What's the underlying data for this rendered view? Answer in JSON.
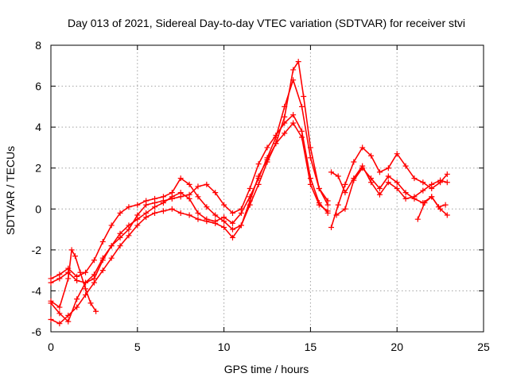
{
  "chart_data": {
    "type": "scatter",
    "title": "Day 013 of 2021, Sidereal Day-to-day VTEC variation (SDTVAR) for receiver stvi",
    "xlabel": "GPS time / hours",
    "ylabel": "SDTVAR / TECUs",
    "xlim": [
      0,
      25
    ],
    "ylim": [
      -6,
      8
    ],
    "xticks": [
      0,
      5,
      10,
      15,
      20,
      25
    ],
    "yticks": [
      -6,
      -4,
      -2,
      0,
      2,
      4,
      6,
      8
    ],
    "grid": true,
    "marker": "+",
    "color": "#ff0000",
    "series": [
      {
        "name": "track-1",
        "x": [
          0.0,
          0.5,
          1.0,
          1.5,
          2.0,
          2.5,
          3.0,
          3.5,
          4.0,
          4.5,
          5.0,
          5.5,
          6.0,
          6.5,
          7.0,
          7.5,
          8.0,
          8.5,
          9.0,
          9.5,
          10.0,
          10.5,
          11.0,
          11.5,
          12.0,
          12.5,
          13.0,
          13.5,
          14.0,
          14.3,
          14.6,
          15.0,
          15.5,
          16.0
        ],
        "y": [
          -3.4,
          -3.2,
          -2.9,
          -3.3,
          -3.1,
          -2.5,
          -1.6,
          -0.8,
          -0.2,
          0.1,
          0.2,
          0.4,
          0.5,
          0.6,
          0.8,
          1.5,
          1.2,
          0.6,
          0.1,
          -0.3,
          -0.6,
          -1.0,
          -0.8,
          0.4,
          1.6,
          2.4,
          3.2,
          4.5,
          6.8,
          7.2,
          5.5,
          3.0,
          1.0,
          0.2
        ]
      },
      {
        "name": "track-2",
        "x": [
          0.0,
          0.5,
          1.0,
          1.5,
          2.0,
          2.5,
          3.0,
          3.5,
          4.0,
          4.5,
          5.0,
          5.5,
          6.0,
          6.5,
          7.0,
          7.5,
          8.0,
          8.5,
          9.0,
          9.5,
          10.0,
          10.5,
          11.0,
          11.5,
          12.0,
          12.5,
          13.0,
          13.5,
          14.0,
          14.5,
          15.0,
          15.5,
          16.0
        ],
        "y": [
          -3.6,
          -3.4,
          -3.1,
          -3.5,
          -3.6,
          -3.4,
          -2.5,
          -1.8,
          -1.2,
          -0.8,
          -0.5,
          -0.2,
          0.1,
          0.3,
          0.6,
          0.8,
          0.5,
          -0.2,
          -0.5,
          -0.6,
          -0.4,
          -0.7,
          -0.2,
          0.6,
          1.5,
          2.5,
          3.5,
          5.0,
          6.3,
          5.0,
          2.5,
          1.0,
          0.4
        ]
      },
      {
        "name": "track-3",
        "x": [
          0.0,
          0.5,
          1.0,
          1.5,
          2.0,
          2.5,
          3.0,
          3.5,
          4.0,
          4.5,
          5.0,
          5.5,
          6.0,
          6.5,
          7.0,
          7.5,
          8.0,
          8.5,
          9.0,
          9.5,
          10.0,
          10.5,
          11.0,
          11.5,
          12.0,
          12.5,
          13.0,
          13.5,
          14.0,
          14.5,
          15.0,
          15.5,
          16.0
        ],
        "y": [
          -4.6,
          -5.1,
          -5.5,
          -4.4,
          -3.6,
          -3.2,
          -2.4,
          -1.8,
          -1.4,
          -1.0,
          -0.3,
          0.2,
          0.3,
          0.4,
          0.5,
          0.6,
          0.7,
          1.1,
          1.2,
          0.8,
          0.2,
          -0.2,
          0.0,
          1.0,
          2.2,
          3.0,
          3.6,
          4.2,
          4.6,
          3.8,
          1.5,
          0.3,
          -0.2
        ]
      },
      {
        "name": "track-4",
        "x": [
          0.0,
          0.5,
          1.0,
          1.5,
          2.0,
          2.5,
          3.0,
          3.5,
          4.0,
          4.5,
          5.0,
          5.5,
          6.0,
          6.5,
          7.0,
          7.5,
          8.0,
          8.5,
          9.0,
          9.5,
          10.0,
          10.5,
          11.0,
          11.5,
          12.0,
          12.5,
          13.0,
          13.5,
          14.0,
          14.5,
          15.0,
          15.5,
          16.0
        ],
        "y": [
          -5.4,
          -5.6,
          -5.2,
          -4.8,
          -4.2,
          -3.6,
          -3.0,
          -2.4,
          -1.8,
          -1.3,
          -0.8,
          -0.4,
          -0.2,
          -0.1,
          0.0,
          -0.2,
          -0.3,
          -0.5,
          -0.6,
          -0.7,
          -0.9,
          -1.4,
          -0.8,
          0.2,
          1.2,
          2.3,
          3.2,
          3.7,
          4.2,
          3.5,
          1.2,
          0.2,
          -0.1
        ]
      },
      {
        "name": "track-5",
        "x": [
          0.0,
          0.5,
          1.0,
          1.2,
          1.4,
          1.7,
          2.0,
          2.3,
          2.6
        ],
        "y": [
          -4.5,
          -4.8,
          -3.4,
          -2.0,
          -2.3,
          -3.1,
          -3.9,
          -4.6,
          -5.0
        ]
      },
      {
        "name": "track-6",
        "x": [
          16.2,
          16.6,
          17.0,
          17.5,
          18.0,
          18.5,
          19.0,
          19.5,
          20.0,
          20.5,
          21.0,
          21.5,
          22.0,
          22.5,
          22.9
        ],
        "y": [
          -0.9,
          0.2,
          1.2,
          2.3,
          3.0,
          2.6,
          1.8,
          2.0,
          2.7,
          2.1,
          1.5,
          1.3,
          1.0,
          1.3,
          1.7
        ]
      },
      {
        "name": "track-7",
        "x": [
          16.2,
          16.6,
          17.0,
          17.5,
          18.0,
          18.5,
          19.0,
          19.5,
          20.0,
          20.5,
          21.0,
          21.5,
          22.0,
          22.5,
          22.9
        ],
        "y": [
          1.8,
          1.6,
          0.8,
          1.5,
          2.1,
          1.3,
          0.7,
          1.3,
          1.0,
          0.5,
          0.6,
          0.9,
          1.2,
          1.4,
          1.3
        ]
      },
      {
        "name": "track-8",
        "x": [
          16.5,
          17.0,
          17.5,
          18.0,
          18.5,
          19.0,
          19.5,
          20.0,
          20.5,
          21.0,
          21.5,
          22.0,
          22.5,
          22.9
        ],
        "y": [
          -0.3,
          0.0,
          1.4,
          2.0,
          1.5,
          1.0,
          1.6,
          1.3,
          0.8,
          0.5,
          0.3,
          0.6,
          0.0,
          -0.3
        ]
      },
      {
        "name": "track-9",
        "x": [
          21.2,
          21.6,
          22.0,
          22.4,
          22.8
        ],
        "y": [
          -0.5,
          0.3,
          0.6,
          0.1,
          0.2
        ]
      }
    ]
  }
}
